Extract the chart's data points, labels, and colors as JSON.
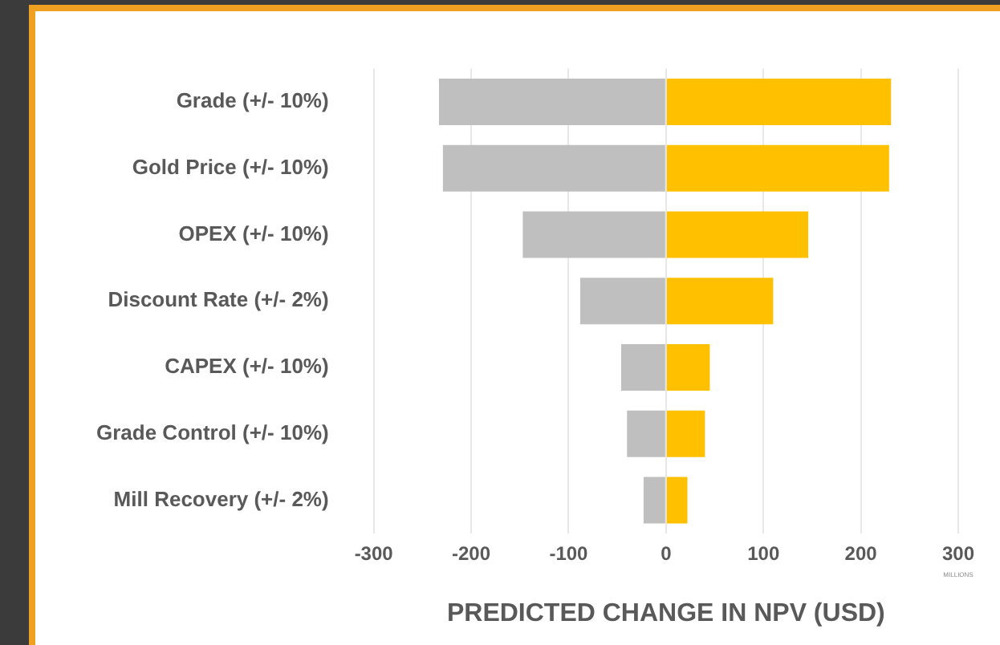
{
  "chart_data": {
    "type": "bar",
    "orientation": "horizontal",
    "stacked": true,
    "categories": [
      "Grade (+/- 10%)",
      "Gold Price (+/- 10%)",
      "OPEX (+/- 10%)",
      "Discount Rate (+/- 2%)",
      "CAPEX (+/- 10%)",
      "Grade Control (+/- 10%)",
      "Mill Recovery (+/- 2%)"
    ],
    "series": [
      {
        "color": "#bfbfbf",
        "values": [
          -233,
          -229,
          -147,
          -88,
          -46,
          -40,
          -23
        ]
      },
      {
        "color": "#ffc000",
        "values": [
          231,
          229,
          146,
          110,
          45,
          40,
          22
        ]
      }
    ],
    "xlabel": "PREDICTED CHANGE IN NPV (USD)",
    "xlim": [
      -300,
      300
    ],
    "xticks": [
      -300,
      -200,
      -100,
      0,
      100,
      200,
      300
    ],
    "grid": "x",
    "legend": false,
    "annotations": [
      "MILLIONS"
    ]
  }
}
